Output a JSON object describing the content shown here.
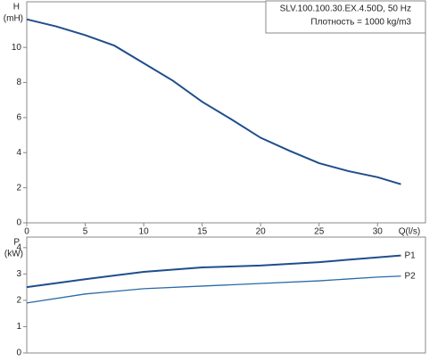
{
  "chart_data": [
    {
      "type": "line",
      "ylabel": "H",
      "ylabel_unit": "(mH)",
      "xlabel": "Q(l/s)",
      "annotations": [
        "SLV.100.100.30.EX.4.50D, 50 Hz",
        "Плотность = 1000 kg/m3"
      ],
      "x": [
        0,
        2.5,
        5,
        7.5,
        10,
        12.5,
        15,
        17.5,
        20,
        22.5,
        25,
        27.5,
        30,
        32
      ],
      "series": [
        {
          "color": "#1f4e8c",
          "values": [
            11.6,
            11.2,
            10.7,
            10.1,
            9.1,
            8.1,
            6.9,
            5.9,
            4.85,
            4.1,
            3.4,
            2.95,
            2.6,
            2.2
          ]
        }
      ],
      "xlim": [
        0,
        34.1
      ],
      "xticks": [
        0,
        5,
        10,
        15,
        20,
        25,
        30
      ],
      "ylim": [
        0,
        12.6
      ],
      "yticks": [
        0,
        2,
        4,
        6,
        8,
        10
      ]
    },
    {
      "type": "line",
      "ylabel": "P",
      "ylabel_unit": "(kW)",
      "x": [
        0,
        5,
        10,
        15,
        20,
        25,
        30,
        32
      ],
      "series": [
        {
          "name": "P1",
          "color": "#1f4e8c",
          "values": [
            2.5,
            2.8,
            3.08,
            3.25,
            3.32,
            3.45,
            3.63,
            3.7
          ]
        },
        {
          "name": "P2",
          "color": "#2a6aa8",
          "values": [
            1.9,
            2.24,
            2.44,
            2.54,
            2.64,
            2.74,
            2.88,
            2.92
          ]
        }
      ],
      "xlim": [
        0,
        34.1
      ],
      "ylim": [
        0,
        4.4
      ],
      "yticks": [
        0,
        1,
        2,
        3,
        4
      ]
    }
  ]
}
